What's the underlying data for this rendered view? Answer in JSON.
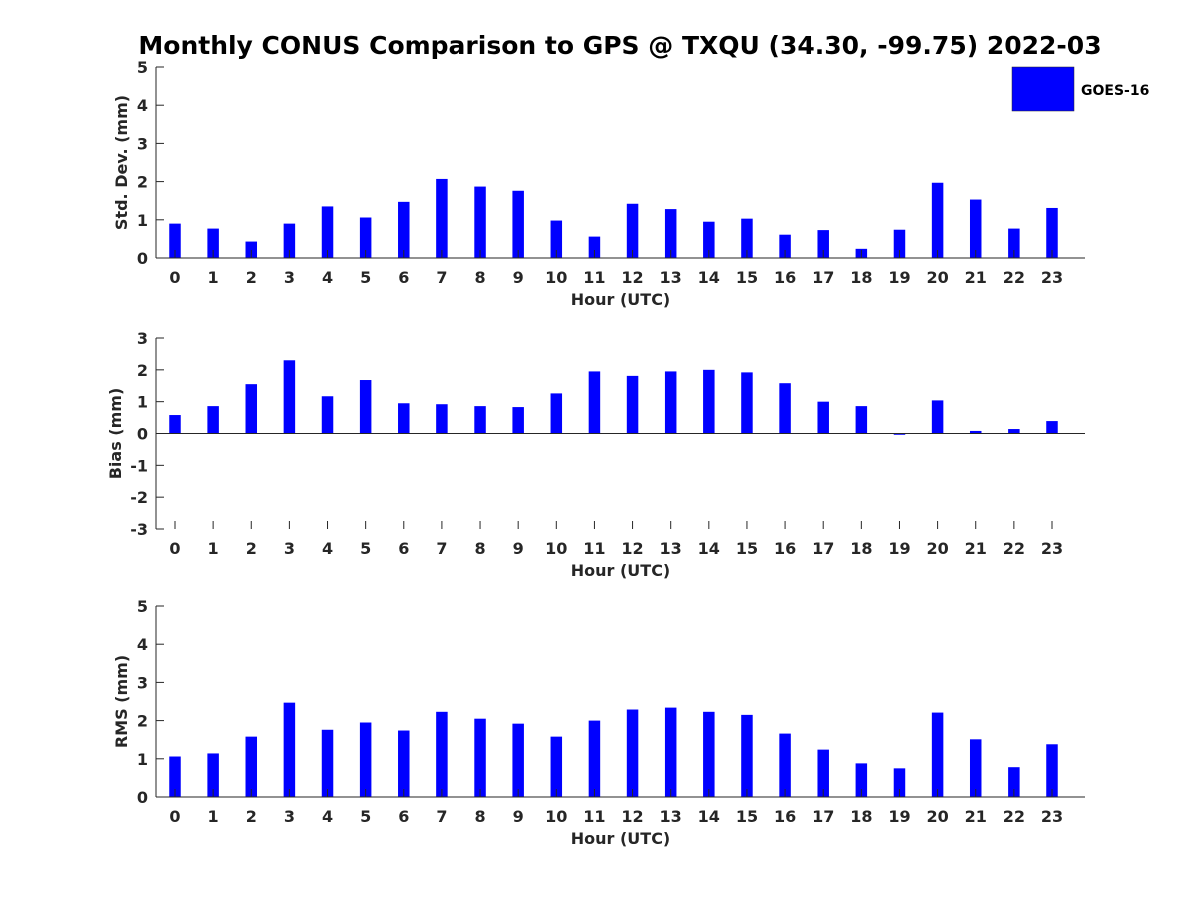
{
  "title": "Monthly CONUS Comparison to GPS @ TXQU (34.30, -99.75) 2022-03",
  "legend": {
    "label": "GOES-16",
    "color": "#0000ff"
  },
  "chart_data": [
    {
      "type": "bar",
      "name": "std",
      "xlabel": "Hour (UTC)",
      "ylabel": "Std. Dev. (mm)",
      "ylim": [
        0,
        5
      ],
      "yticks": [
        0,
        1,
        2,
        3,
        4,
        5
      ],
      "categories": [
        "0",
        "1",
        "2",
        "3",
        "4",
        "5",
        "6",
        "7",
        "8",
        "9",
        "10",
        "11",
        "12",
        "13",
        "14",
        "15",
        "16",
        "17",
        "18",
        "19",
        "20",
        "21",
        "22",
        "23"
      ],
      "series": [
        {
          "name": "GOES-16",
          "color": "#0000ff",
          "values": [
            0.9,
            0.77,
            0.43,
            0.9,
            1.35,
            1.06,
            1.47,
            2.07,
            1.87,
            1.76,
            0.98,
            0.56,
            1.42,
            1.28,
            0.95,
            1.03,
            0.61,
            0.73,
            0.24,
            0.74,
            1.97,
            1.53,
            0.77,
            1.31
          ]
        }
      ],
      "grid": false,
      "legend": "top-right"
    },
    {
      "type": "bar",
      "name": "bias",
      "xlabel": "Hour (UTC)",
      "ylabel": "Bias (mm)",
      "ylim": [
        -3,
        3
      ],
      "yticks": [
        -3,
        -2,
        -1,
        0,
        1,
        2,
        3
      ],
      "categories": [
        "0",
        "1",
        "2",
        "3",
        "4",
        "5",
        "6",
        "7",
        "8",
        "9",
        "10",
        "11",
        "12",
        "13",
        "14",
        "15",
        "16",
        "17",
        "18",
        "19",
        "20",
        "21",
        "22",
        "23"
      ],
      "series": [
        {
          "name": "GOES-16",
          "color": "#0000ff",
          "values": [
            0.58,
            0.86,
            1.55,
            2.3,
            1.17,
            1.68,
            0.95,
            0.92,
            0.86,
            0.83,
            1.26,
            1.95,
            1.81,
            1.95,
            2.0,
            1.92,
            1.58,
            1.0,
            0.86,
            -0.04,
            1.04,
            0.08,
            0.14,
            0.39
          ]
        }
      ],
      "grid": false
    },
    {
      "type": "bar",
      "name": "rms",
      "xlabel": "Hour (UTC)",
      "ylabel": "RMS (mm)",
      "ylim": [
        0,
        5
      ],
      "yticks": [
        0,
        1,
        2,
        3,
        4,
        5
      ],
      "categories": [
        "0",
        "1",
        "2",
        "3",
        "4",
        "5",
        "6",
        "7",
        "8",
        "9",
        "10",
        "11",
        "12",
        "13",
        "14",
        "15",
        "16",
        "17",
        "18",
        "19",
        "20",
        "21",
        "22",
        "23"
      ],
      "series": [
        {
          "name": "GOES-16",
          "color": "#0000ff",
          "values": [
            1.06,
            1.14,
            1.58,
            2.47,
            1.76,
            1.95,
            1.74,
            2.23,
            2.05,
            1.92,
            1.58,
            2.0,
            2.29,
            2.34,
            2.23,
            2.15,
            1.66,
            1.24,
            0.88,
            0.75,
            2.21,
            1.51,
            0.78,
            1.38
          ]
        }
      ],
      "grid": false
    }
  ]
}
